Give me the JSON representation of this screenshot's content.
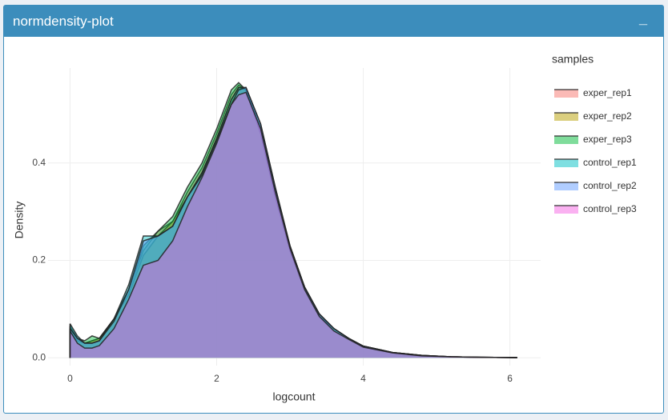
{
  "header": {
    "title": "normdensity-plot",
    "tool": "_"
  },
  "chart_data": {
    "type": "area",
    "x_label": "logcount",
    "y_label": "Density",
    "legend_title": "samples",
    "x": [
      0,
      0.1,
      0.2,
      0.3,
      0.4,
      0.6,
      0.8,
      1.0,
      1.2,
      1.4,
      1.6,
      1.8,
      2.0,
      2.2,
      2.3,
      2.4,
      2.6,
      2.8,
      3.0,
      3.2,
      3.4,
      3.6,
      3.8,
      4.0,
      4.4,
      4.8,
      5.2,
      5.6,
      6.1
    ],
    "series": [
      {
        "name": "exper_rep1",
        "color": "#F8766D",
        "values": [
          0.06,
          0.04,
          0.03,
          0.035,
          0.04,
          0.08,
          0.14,
          0.22,
          0.26,
          0.28,
          0.34,
          0.39,
          0.46,
          0.54,
          0.56,
          0.55,
          0.47,
          0.34,
          0.225,
          0.145,
          0.09,
          0.06,
          0.04,
          0.024,
          0.011,
          0.005,
          0.002,
          0.001,
          0.0005
        ]
      },
      {
        "name": "exper_rep2",
        "color": "#B79F00",
        "values": [
          0.055,
          0.035,
          0.03,
          0.035,
          0.04,
          0.08,
          0.13,
          0.21,
          0.25,
          0.28,
          0.33,
          0.38,
          0.45,
          0.53,
          0.555,
          0.55,
          0.47,
          0.34,
          0.23,
          0.145,
          0.09,
          0.06,
          0.04,
          0.024,
          0.011,
          0.005,
          0.002,
          0.001,
          0.0005
        ]
      },
      {
        "name": "exper_rep3",
        "color": "#00BA38",
        "values": [
          0.065,
          0.04,
          0.035,
          0.045,
          0.04,
          0.08,
          0.14,
          0.23,
          0.26,
          0.29,
          0.35,
          0.4,
          0.47,
          0.55,
          0.565,
          0.55,
          0.46,
          0.33,
          0.22,
          0.14,
          0.085,
          0.06,
          0.04,
          0.022,
          0.01,
          0.004,
          0.002,
          0.001,
          0.0005
        ]
      },
      {
        "name": "control_rep1",
        "color": "#00BFC4",
        "values": [
          0.07,
          0.045,
          0.03,
          0.03,
          0.035,
          0.08,
          0.15,
          0.25,
          0.25,
          0.27,
          0.33,
          0.38,
          0.45,
          0.53,
          0.555,
          0.555,
          0.48,
          0.35,
          0.23,
          0.145,
          0.09,
          0.06,
          0.04,
          0.024,
          0.011,
          0.005,
          0.002,
          0.001,
          0.0005
        ]
      },
      {
        "name": "control_rep2",
        "color": "#619CFF",
        "values": [
          0.06,
          0.04,
          0.03,
          0.03,
          0.035,
          0.075,
          0.14,
          0.24,
          0.25,
          0.27,
          0.33,
          0.375,
          0.445,
          0.52,
          0.55,
          0.555,
          0.48,
          0.35,
          0.23,
          0.145,
          0.09,
          0.06,
          0.04,
          0.024,
          0.011,
          0.005,
          0.002,
          0.001,
          0.0005
        ]
      },
      {
        "name": "control_rep3",
        "color": "#F564E3",
        "values": [
          0.055,
          0.03,
          0.02,
          0.02,
          0.025,
          0.06,
          0.12,
          0.19,
          0.2,
          0.24,
          0.31,
          0.37,
          0.44,
          0.52,
          0.54,
          0.545,
          0.47,
          0.34,
          0.225,
          0.14,
          0.085,
          0.055,
          0.038,
          0.022,
          0.01,
          0.004,
          0.002,
          0.001,
          0.0005
        ]
      }
    ],
    "xlim": [
      -0.3,
      6.42
    ],
    "xticks": [
      0,
      2,
      4,
      6
    ],
    "ylim": [
      -0.016,
      0.595
    ],
    "yticks": [
      {
        "value": 0,
        "label": "0.0"
      },
      0.2,
      0.4
    ],
    "grid": true,
    "legend": "right"
  }
}
